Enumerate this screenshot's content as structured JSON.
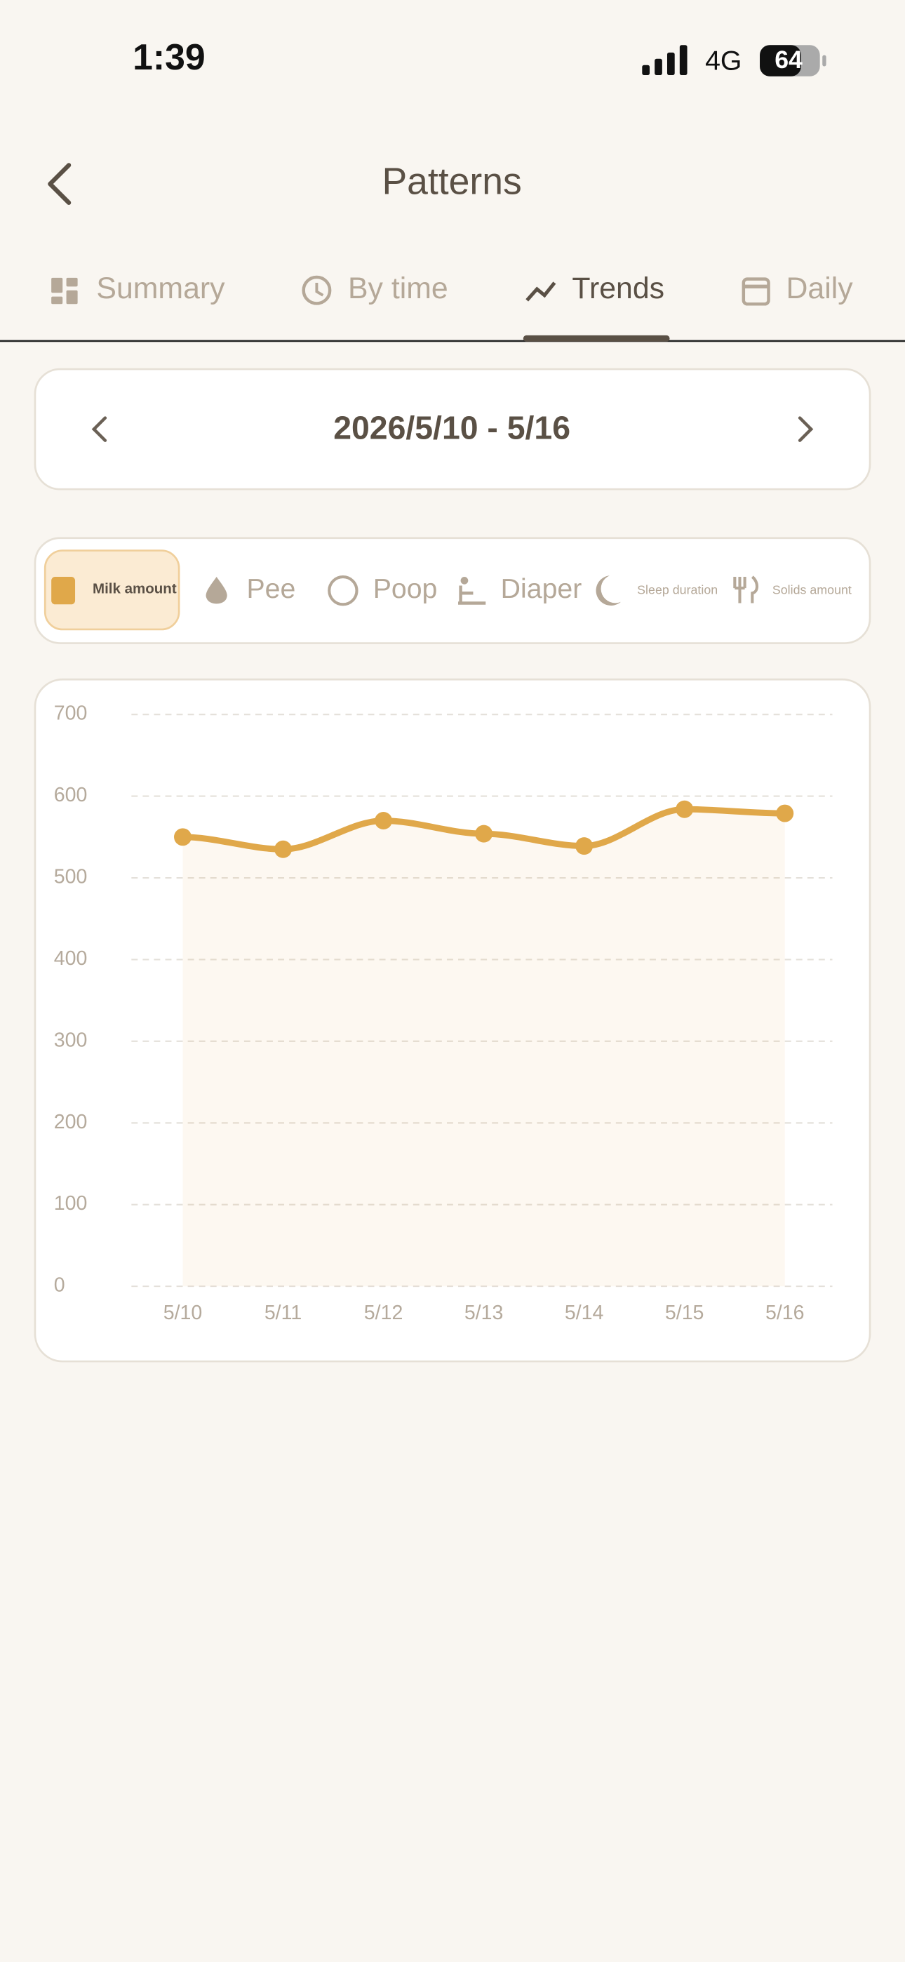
{
  "status_bar": {
    "time": "1:39",
    "network": "4G",
    "battery": "64"
  },
  "header": {
    "title": "Patterns"
  },
  "tabs": [
    "Summary",
    "By time",
    "Trends",
    "Daily"
  ],
  "date_range": "2026/5/10 - 5/16",
  "metrics": [
    "Milk amount",
    "Pee",
    "Poop",
    "Diaper",
    "Sleep duration",
    "Solids amount"
  ],
  "chart_data": {
    "type": "line",
    "categories": [
      "5/10",
      "5/11",
      "5/12",
      "5/13",
      "5/14",
      "5/15",
      "5/16"
    ],
    "values": [
      550,
      535,
      570,
      554,
      539,
      584,
      579
    ],
    "color": "#e0a84a",
    "ylim": [
      0,
      700
    ],
    "yticks": [
      0,
      100,
      200,
      300,
      400,
      500,
      600,
      700
    ],
    "grid": true
  }
}
